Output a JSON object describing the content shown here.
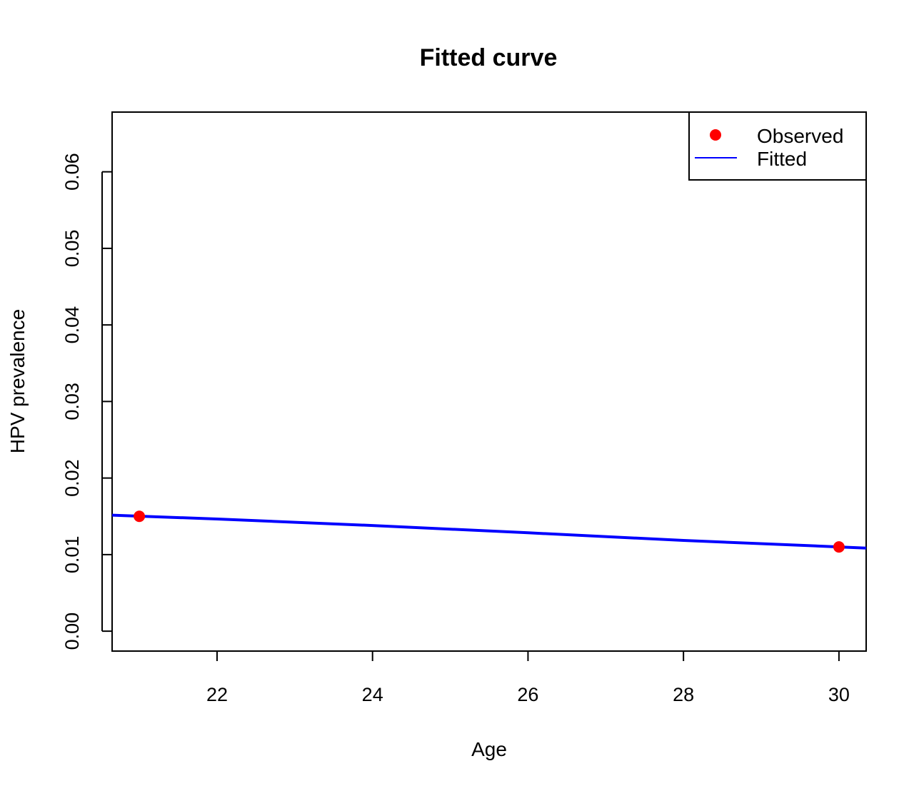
{
  "chart_data": {
    "type": "line",
    "title": "Fitted curve",
    "xlabel": "Age",
    "ylabel": "HPV prevalence",
    "xlim": [
      20.65,
      30.35
    ],
    "ylim": [
      -0.0026,
      0.0678
    ],
    "x_ticks": [
      22,
      24,
      26,
      28,
      30
    ],
    "x_tick_labels": [
      "22",
      "24",
      "26",
      "28",
      "30"
    ],
    "y_ticks": [
      0.0,
      0.01,
      0.02,
      0.03,
      0.04,
      0.05,
      0.06
    ],
    "y_tick_labels": [
      "0.00",
      "0.01",
      "0.02",
      "0.03",
      "0.04",
      "0.05",
      "0.06"
    ],
    "grid": false,
    "legend": {
      "position": "top-right",
      "entries": [
        {
          "label": "Observed",
          "symbol": "point",
          "color": "#ff0000"
        },
        {
          "label": "Fitted",
          "symbol": "line",
          "color": "#0000ff"
        }
      ]
    },
    "series": [
      {
        "name": "Observed",
        "kind": "points",
        "color": "#ff0000",
        "x": [
          21,
          30
        ],
        "y": [
          0.015,
          0.011
        ]
      },
      {
        "name": "Fitted",
        "kind": "line",
        "color": "#0000ff",
        "x": [
          20.65,
          22,
          24,
          26,
          28,
          30,
          30.35
        ],
        "y": [
          0.01515,
          0.01465,
          0.0138,
          0.01285,
          0.01185,
          0.011,
          0.01085
        ]
      }
    ]
  }
}
